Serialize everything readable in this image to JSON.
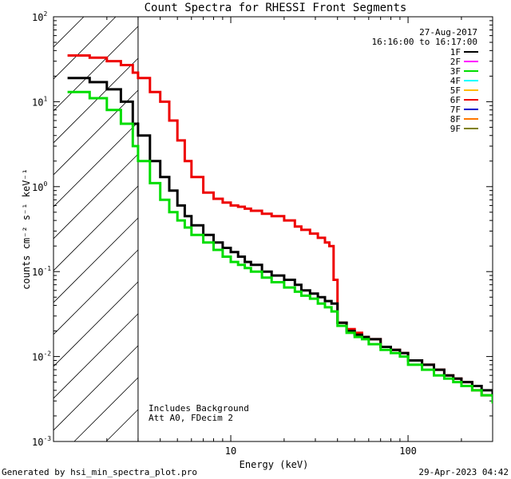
{
  "chart_data": {
    "type": "line",
    "title": "Count Spectra for RHESSI Front Segments",
    "xlabel": "Energy (keV)",
    "ylabel": "counts cm⁻² s⁻¹ keV⁻¹",
    "x_scale": "log",
    "y_scale": "log",
    "xlim": [
      1,
      300
    ],
    "ylim": [
      0.001,
      100
    ],
    "x_ticks": [
      {
        "v": 10,
        "label": "10"
      },
      {
        "v": 100,
        "label": "100"
      }
    ],
    "y_ticks": [
      {
        "v": 100,
        "base": "10",
        "exp": "2"
      },
      {
        "v": 10,
        "base": "10",
        "exp": "1"
      },
      {
        "v": 1,
        "base": "10",
        "exp": "0"
      },
      {
        "v": 0.1,
        "base": "10",
        "exp": "-1"
      },
      {
        "v": 0.01,
        "base": "10",
        "exp": "-2"
      },
      {
        "v": 0.001,
        "base": "10",
        "exp": "-3"
      }
    ],
    "date_line": "27-Aug-2017",
    "time_line": "16:16:00 to 16:17:00",
    "shaded_region_max_keV": 3,
    "annotation_lines": [
      "Includes Background",
      "Att A0, FDecim 2"
    ],
    "legend": [
      {
        "name": "1F",
        "color": "#000000"
      },
      {
        "name": "2F",
        "color": "#ff00ff"
      },
      {
        "name": "3F",
        "color": "#00dd00"
      },
      {
        "name": "4F",
        "color": "#00ffff"
      },
      {
        "name": "5F",
        "color": "#ffbb00"
      },
      {
        "name": "6F",
        "color": "#ee0000"
      },
      {
        "name": "7F",
        "color": "#0000cc"
      },
      {
        "name": "8F",
        "color": "#ff7700"
      },
      {
        "name": "9F",
        "color": "#808000"
      }
    ],
    "series": [
      {
        "name": "6F",
        "color": "#ee0000",
        "points": [
          [
            1.2,
            35
          ],
          [
            1.6,
            33
          ],
          [
            2.0,
            30
          ],
          [
            2.4,
            27
          ],
          [
            2.8,
            22
          ],
          [
            3.0,
            19
          ],
          [
            3.5,
            13
          ],
          [
            4.0,
            10
          ],
          [
            4.5,
            6
          ],
          [
            5.0,
            3.5
          ],
          [
            5.5,
            2.0
          ],
          [
            6.0,
            1.3
          ],
          [
            7.0,
            0.85
          ],
          [
            8.0,
            0.72
          ],
          [
            9.0,
            0.65
          ],
          [
            10,
            0.6
          ],
          [
            11,
            0.58
          ],
          [
            12,
            0.55
          ],
          [
            13,
            0.52
          ],
          [
            15,
            0.48
          ],
          [
            17,
            0.45
          ],
          [
            20,
            0.4
          ],
          [
            23,
            0.34
          ],
          [
            25,
            0.31
          ],
          [
            28,
            0.28
          ],
          [
            31,
            0.25
          ],
          [
            34,
            0.22
          ],
          [
            36,
            0.2
          ],
          [
            38,
            0.08
          ],
          [
            40,
            0.025
          ],
          [
            45,
            0.021
          ],
          [
            50,
            0.019
          ],
          [
            55,
            0.017
          ],
          [
            60,
            0.016
          ],
          [
            70,
            0.013
          ],
          [
            80,
            0.012
          ],
          [
            90,
            0.011
          ],
          [
            100,
            0.009
          ],
          [
            120,
            0.008
          ],
          [
            140,
            0.007
          ],
          [
            160,
            0.006
          ],
          [
            180,
            0.0055
          ],
          [
            200,
            0.005
          ],
          [
            230,
            0.004
          ],
          [
            260,
            0.0035
          ],
          [
            300,
            0.003
          ]
        ]
      },
      {
        "name": "1F",
        "color": "#000000",
        "points": [
          [
            1.2,
            19
          ],
          [
            1.6,
            17
          ],
          [
            2.0,
            14
          ],
          [
            2.4,
            10
          ],
          [
            2.8,
            5.5
          ],
          [
            3.0,
            4.0
          ],
          [
            3.5,
            2.0
          ],
          [
            4.0,
            1.3
          ],
          [
            4.5,
            0.9
          ],
          [
            5.0,
            0.6
          ],
          [
            5.5,
            0.45
          ],
          [
            6.0,
            0.35
          ],
          [
            7.0,
            0.27
          ],
          [
            8.0,
            0.22
          ],
          [
            9.0,
            0.19
          ],
          [
            10,
            0.17
          ],
          [
            11,
            0.15
          ],
          [
            12,
            0.13
          ],
          [
            13,
            0.12
          ],
          [
            15,
            0.1
          ],
          [
            17,
            0.09
          ],
          [
            20,
            0.08
          ],
          [
            23,
            0.07
          ],
          [
            25,
            0.06
          ],
          [
            28,
            0.055
          ],
          [
            31,
            0.05
          ],
          [
            34,
            0.045
          ],
          [
            37,
            0.042
          ],
          [
            40,
            0.025
          ],
          [
            45,
            0.02
          ],
          [
            50,
            0.018
          ],
          [
            55,
            0.017
          ],
          [
            60,
            0.016
          ],
          [
            70,
            0.013
          ],
          [
            80,
            0.012
          ],
          [
            90,
            0.011
          ],
          [
            100,
            0.009
          ],
          [
            120,
            0.008
          ],
          [
            140,
            0.007
          ],
          [
            160,
            0.006
          ],
          [
            180,
            0.0055
          ],
          [
            200,
            0.005
          ],
          [
            230,
            0.0045
          ],
          [
            260,
            0.004
          ],
          [
            300,
            0.003
          ]
        ]
      },
      {
        "name": "3F",
        "color": "#00dd00",
        "points": [
          [
            1.2,
            13
          ],
          [
            1.6,
            11
          ],
          [
            2.0,
            8
          ],
          [
            2.4,
            5.5
          ],
          [
            2.8,
            3.0
          ],
          [
            3.0,
            2.0
          ],
          [
            3.5,
            1.1
          ],
          [
            4.0,
            0.7
          ],
          [
            4.5,
            0.5
          ],
          [
            5.0,
            0.4
          ],
          [
            5.5,
            0.33
          ],
          [
            6.0,
            0.27
          ],
          [
            7.0,
            0.22
          ],
          [
            8.0,
            0.18
          ],
          [
            9.0,
            0.15
          ],
          [
            10,
            0.13
          ],
          [
            11,
            0.12
          ],
          [
            12,
            0.11
          ],
          [
            13,
            0.1
          ],
          [
            15,
            0.085
          ],
          [
            17,
            0.075
          ],
          [
            20,
            0.065
          ],
          [
            23,
            0.058
          ],
          [
            25,
            0.052
          ],
          [
            28,
            0.048
          ],
          [
            31,
            0.042
          ],
          [
            34,
            0.038
          ],
          [
            37,
            0.034
          ],
          [
            40,
            0.023
          ],
          [
            45,
            0.019
          ],
          [
            50,
            0.017
          ],
          [
            55,
            0.016
          ],
          [
            60,
            0.014
          ],
          [
            70,
            0.012
          ],
          [
            80,
            0.011
          ],
          [
            90,
            0.01
          ],
          [
            100,
            0.008
          ],
          [
            120,
            0.007
          ],
          [
            140,
            0.006
          ],
          [
            160,
            0.0055
          ],
          [
            180,
            0.005
          ],
          [
            200,
            0.0045
          ],
          [
            230,
            0.004
          ],
          [
            260,
            0.0035
          ],
          [
            300,
            0.0028
          ]
        ]
      }
    ]
  },
  "footer": {
    "left": "Generated by hsi_min_spectra_plot.pro",
    "right": "29-Apr-2023 04:42"
  }
}
